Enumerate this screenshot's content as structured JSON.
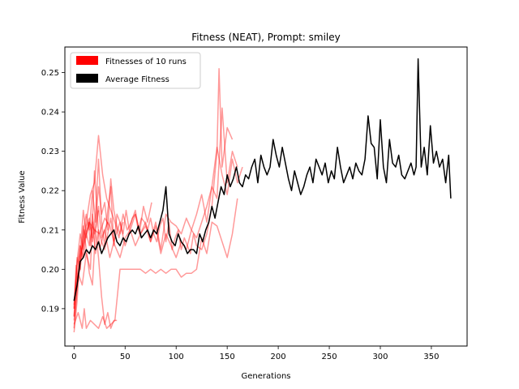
{
  "chart_data": {
    "type": "line",
    "title": "Fitness (NEAT), Prompt: smiley",
    "xlabel": "Generations",
    "ylabel": "Fitness Value",
    "xlim": [
      -9,
      385
    ],
    "ylim": [
      0.1805,
      0.2565
    ],
    "x_ticks": [
      0,
      50,
      100,
      150,
      200,
      250,
      300,
      350
    ],
    "y_ticks": [
      0.19,
      0.2,
      0.21,
      0.22,
      0.23,
      0.24,
      0.25
    ],
    "y_tick_labels": [
      "0.19",
      "0.20",
      "0.21",
      "0.22",
      "0.23",
      "0.24",
      "0.25"
    ],
    "grid": false,
    "legend_position": "top-left",
    "legend": [
      {
        "label": "Fitnesses of 10 runs",
        "color": "#ff0000"
      },
      {
        "label": "Average Fitness",
        "color": "#000000"
      }
    ],
    "series": [
      {
        "name": "Fitnesses of 10 runs",
        "color": "#ff0000",
        "opacity": 0.4,
        "x": [
          0,
          4,
          8,
          12,
          16,
          20,
          25,
          30,
          35,
          40,
          45,
          50,
          55,
          60,
          65,
          70,
          75,
          80,
          85,
          90,
          95,
          100,
          105,
          110,
          115,
          120,
          125,
          130,
          135,
          140,
          145,
          150,
          155,
          160,
          165
        ],
        "y": [
          0.185,
          0.199,
          0.196,
          0.204,
          0.2,
          0.225,
          0.205,
          0.21,
          0.203,
          0.208,
          0.212,
          0.206,
          0.21,
          0.214,
          0.209,
          0.212,
          0.207,
          0.211,
          0.204,
          0.209,
          0.206,
          0.203,
          0.207,
          0.205,
          0.21,
          0.208,
          0.212,
          0.216,
          0.221,
          0.231,
          0.224,
          0.219,
          0.228,
          0.222,
          0.226
        ]
      },
      {
        "name": "Fitnesses of 10 runs",
        "color": "#ff0000",
        "opacity": 0.4,
        "x": [
          0,
          4,
          8,
          12,
          16,
          20,
          24,
          28,
          32,
          36,
          40,
          44,
          48,
          52,
          56,
          60,
          64,
          68,
          72,
          76
        ],
        "y": [
          0.187,
          0.198,
          0.206,
          0.212,
          0.219,
          0.222,
          0.234,
          0.224,
          0.218,
          0.215,
          0.212,
          0.208,
          0.214,
          0.21,
          0.212,
          0.215,
          0.209,
          0.216,
          0.212,
          0.217
        ]
      },
      {
        "name": "Fitnesses of 10 runs",
        "color": "#ff0000",
        "opacity": 0.4,
        "x": [
          0,
          5,
          10,
          15,
          20,
          25,
          30,
          35,
          40,
          45,
          50,
          55,
          60,
          65,
          70,
          75,
          80,
          85,
          90,
          95,
          100,
          105,
          110,
          115,
          120,
          125,
          130,
          135,
          140,
          145,
          150,
          155,
          160
        ],
        "y": [
          0.188,
          0.203,
          0.207,
          0.212,
          0.21,
          0.209,
          0.213,
          0.211,
          0.206,
          0.203,
          0.208,
          0.21,
          0.206,
          0.209,
          0.211,
          0.207,
          0.212,
          0.205,
          0.214,
          0.212,
          0.211,
          0.209,
          0.213,
          0.21,
          0.214,
          0.219,
          0.212,
          0.221,
          0.218,
          0.241,
          0.222,
          0.23,
          0.226
        ]
      },
      {
        "name": "Fitnesses of 10 runs",
        "color": "#ff0000",
        "opacity": 0.4,
        "x": [
          0,
          3,
          6,
          9,
          12,
          15,
          18,
          21,
          24,
          27,
          30,
          33,
          36,
          39,
          42,
          45,
          48,
          51,
          54,
          57,
          60,
          63,
          66,
          69,
          72,
          75,
          78,
          81,
          84,
          87,
          90,
          93,
          96,
          99,
          102,
          105,
          108,
          111,
          114,
          117,
          120,
          125,
          130,
          135,
          140,
          142,
          145,
          150,
          155
        ],
        "y": [
          0.184,
          0.192,
          0.204,
          0.215,
          0.209,
          0.212,
          0.208,
          0.214,
          0.228,
          0.212,
          0.206,
          0.215,
          0.221,
          0.206,
          0.214,
          0.212,
          0.209,
          0.215,
          0.21,
          0.213,
          0.214,
          0.21,
          0.213,
          0.212,
          0.21,
          0.213,
          0.209,
          0.207,
          0.211,
          0.213,
          0.207,
          0.212,
          0.205,
          0.208,
          0.21,
          0.205,
          0.208,
          0.206,
          0.204,
          0.209,
          0.206,
          0.205,
          0.209,
          0.216,
          0.23,
          0.251,
          0.226,
          0.236,
          0.233
        ]
      },
      {
        "name": "Fitnesses of 10 runs",
        "color": "#ff0000",
        "opacity": 0.4,
        "x": [
          0,
          4,
          8,
          10,
          12,
          16,
          20,
          24,
          28,
          32,
          36,
          40,
          45,
          50,
          55,
          60,
          65,
          70,
          75,
          80,
          85,
          90,
          95,
          100,
          105,
          110,
          115,
          120,
          125,
          130,
          135,
          140,
          145,
          150,
          155,
          160
        ],
        "y": [
          0.186,
          0.189,
          0.185,
          0.19,
          0.185,
          0.187,
          0.186,
          0.185,
          0.188,
          0.185,
          0.186,
          0.187,
          0.2,
          0.2,
          0.2,
          0.2,
          0.2,
          0.199,
          0.2,
          0.199,
          0.2,
          0.199,
          0.2,
          0.2,
          0.198,
          0.199,
          0.199,
          0.2,
          0.208,
          0.204,
          0.212,
          0.211,
          0.207,
          0.203,
          0.209,
          0.218
        ]
      },
      {
        "name": "Fitnesses of 10 runs",
        "color": "#ff0000",
        "opacity": 0.4,
        "x": [
          0,
          3,
          6,
          9,
          12,
          15,
          18,
          21,
          24,
          27,
          30,
          33,
          36,
          39,
          42
        ],
        "y": [
          0.192,
          0.198,
          0.2,
          0.211,
          0.205,
          0.199,
          0.196,
          0.21,
          0.203,
          0.193,
          0.186,
          0.189,
          0.185,
          0.187,
          0.187
        ]
      },
      {
        "name": "Fitnesses of 10 runs",
        "color": "#ff0000",
        "opacity": 0.4,
        "x": [
          0,
          3,
          6,
          9,
          12,
          15,
          18,
          21,
          24,
          27,
          30,
          33
        ],
        "y": [
          0.19,
          0.202,
          0.209,
          0.205,
          0.211,
          0.213,
          0.207,
          0.211,
          0.216,
          0.208,
          0.21,
          0.212
        ]
      },
      {
        "name": "Fitnesses of 10 runs",
        "color": "#ff0000",
        "opacity": 0.4,
        "x": [
          0,
          3,
          6,
          9,
          12,
          15,
          18,
          21,
          24,
          27,
          30,
          33,
          36,
          39,
          42,
          45,
          48
        ],
        "y": [
          0.188,
          0.203,
          0.2,
          0.21,
          0.214,
          0.21,
          0.22,
          0.212,
          0.221,
          0.214,
          0.217,
          0.21,
          0.223,
          0.215,
          0.211,
          0.209,
          0.212
        ]
      },
      {
        "name": "Fitnesses of 10 runs",
        "color": "#ff0000",
        "opacity": 0.4,
        "x": [
          0,
          3,
          6,
          9,
          12,
          15,
          18,
          21,
          24,
          27,
          30,
          33,
          36,
          39
        ],
        "y": [
          0.191,
          0.201,
          0.206,
          0.203,
          0.209,
          0.206,
          0.212,
          0.204,
          0.21,
          0.207,
          0.205,
          0.209,
          0.213,
          0.207
        ]
      },
      {
        "name": "Fitnesses of 10 runs",
        "color": "#ff0000",
        "opacity": 0.4,
        "x": [
          0,
          2,
          4,
          6,
          8,
          10,
          12,
          14,
          16,
          18,
          20,
          22,
          24
        ],
        "y": [
          0.19,
          0.201,
          0.197,
          0.206,
          0.203,
          0.21,
          0.208,
          0.212,
          0.206,
          0.214,
          0.209,
          0.211,
          0.215
        ]
      },
      {
        "name": "Average Fitness",
        "color": "#000000",
        "opacity": 1,
        "x": [
          0,
          3,
          6,
          9,
          12,
          15,
          18,
          21,
          24,
          27,
          30,
          33,
          36,
          39,
          42,
          45,
          48,
          51,
          54,
          57,
          60,
          63,
          66,
          69,
          72,
          75,
          78,
          81,
          84,
          87,
          90,
          93,
          96,
          99,
          102,
          105,
          108,
          111,
          114,
          117,
          120,
          123,
          126,
          129,
          132,
          135,
          138,
          141,
          144,
          147,
          150,
          153,
          156,
          159,
          162,
          165,
          168,
          171,
          174,
          177,
          180,
          183,
          186,
          189,
          192,
          195,
          198,
          201,
          204,
          207,
          210,
          213,
          216,
          219,
          222,
          225,
          228,
          231,
          234,
          237,
          240,
          243,
          246,
          249,
          252,
          255,
          258,
          261,
          264,
          267,
          270,
          273,
          276,
          279,
          282,
          285,
          288,
          291,
          294,
          297,
          300,
          303,
          306,
          309,
          312,
          315,
          318,
          321,
          324,
          327,
          330,
          333,
          335,
          337,
          340,
          343,
          346,
          349,
          352,
          355,
          358,
          361,
          364,
          367,
          369
        ],
        "y": [
          0.192,
          0.196,
          0.202,
          0.203,
          0.205,
          0.204,
          0.206,
          0.205,
          0.207,
          0.204,
          0.206,
          0.208,
          0.209,
          0.21,
          0.207,
          0.206,
          0.208,
          0.207,
          0.209,
          0.21,
          0.209,
          0.211,
          0.208,
          0.209,
          0.21,
          0.208,
          0.21,
          0.209,
          0.212,
          0.215,
          0.221,
          0.209,
          0.207,
          0.206,
          0.209,
          0.207,
          0.206,
          0.204,
          0.205,
          0.205,
          0.204,
          0.209,
          0.207,
          0.21,
          0.212,
          0.216,
          0.213,
          0.217,
          0.221,
          0.219,
          0.224,
          0.221,
          0.223,
          0.226,
          0.222,
          0.221,
          0.224,
          0.223,
          0.226,
          0.228,
          0.222,
          0.229,
          0.226,
          0.224,
          0.226,
          0.233,
          0.229,
          0.226,
          0.231,
          0.227,
          0.223,
          0.22,
          0.225,
          0.222,
          0.219,
          0.221,
          0.224,
          0.226,
          0.222,
          0.228,
          0.226,
          0.224,
          0.227,
          0.222,
          0.225,
          0.223,
          0.231,
          0.226,
          0.222,
          0.224,
          0.226,
          0.223,
          0.227,
          0.225,
          0.224,
          0.228,
          0.239,
          0.232,
          0.231,
          0.223,
          0.238,
          0.226,
          0.222,
          0.233,
          0.227,
          0.226,
          0.229,
          0.224,
          0.223,
          0.225,
          0.227,
          0.224,
          0.226,
          0.2535,
          0.226,
          0.231,
          0.224,
          0.2365,
          0.227,
          0.23,
          0.226,
          0.228,
          0.222,
          0.229,
          0.218
        ]
      }
    ]
  }
}
